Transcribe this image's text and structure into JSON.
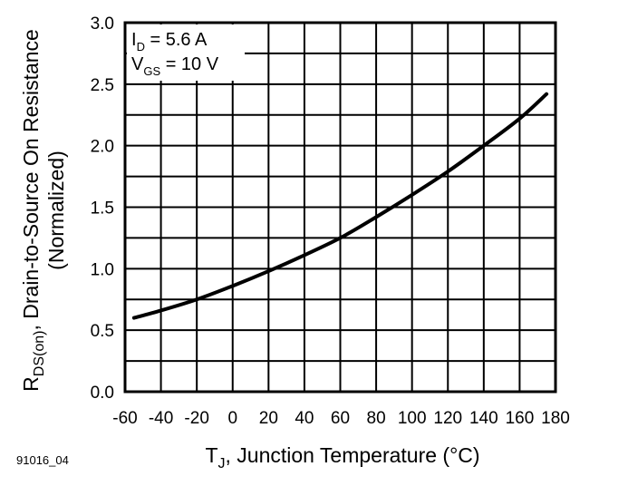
{
  "chart_data": {
    "type": "line",
    "title": "",
    "xlabel": {
      "main": "T",
      "sub": "J",
      "rest": ", Junction Temperature (°C)"
    },
    "ylabel": {
      "line1_main": "R",
      "line1_sub": "DS(on)",
      "line1_rest": ", Drain-to-Source On Resistance",
      "line2": "(Normalized)"
    },
    "xlim": [
      -60,
      180
    ],
    "ylim": [
      0.0,
      3.0
    ],
    "x_ticks": [
      -60,
      -40,
      -20,
      0,
      20,
      40,
      60,
      80,
      100,
      120,
      140,
      160,
      180
    ],
    "x_tick_labels": [
      "-60",
      "-40",
      "-20",
      "0",
      "20",
      "40",
      "60",
      "80",
      "100",
      "120",
      "140",
      "160",
      "180"
    ],
    "y_ticks": [
      0.0,
      0.5,
      1.0,
      1.5,
      2.0,
      2.5,
      3.0
    ],
    "y_tick_labels": [
      "0.0",
      "0.5",
      "1.0",
      "1.5",
      "2.0",
      "2.5",
      "3.0"
    ],
    "grid": true,
    "x_minor_step": 20,
    "y_minor_step": 0.25,
    "series": [
      {
        "name": "RDS(on) normalized",
        "x": [
          -55,
          -40,
          -20,
          0,
          20,
          40,
          60,
          80,
          100,
          120,
          140,
          160,
          175
        ],
        "y": [
          0.6,
          0.66,
          0.75,
          0.86,
          0.98,
          1.11,
          1.25,
          1.42,
          1.6,
          1.79,
          2.0,
          2.22,
          2.42
        ]
      }
    ],
    "annotations": [
      {
        "main": "I",
        "sub": "D",
        "rest": " = 5.6 A"
      },
      {
        "main": "V",
        "sub": "GS",
        "rest": " = 10 V"
      }
    ],
    "annotation_position": "top-left"
  },
  "figure_id": "91016_04"
}
